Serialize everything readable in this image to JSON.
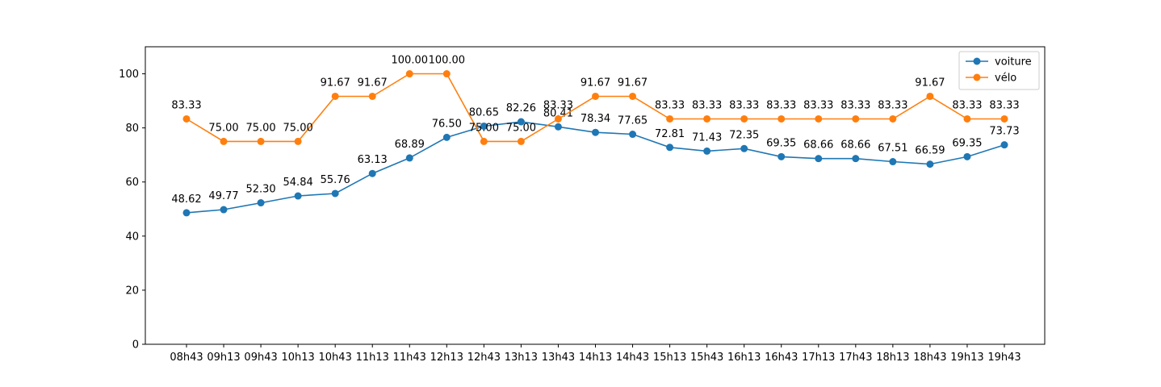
{
  "chart_data": {
    "type": "line",
    "categories": [
      "08h43",
      "09h13",
      "09h43",
      "10h13",
      "10h43",
      "11h13",
      "11h43",
      "12h13",
      "12h43",
      "13h13",
      "13h43",
      "14h13",
      "14h43",
      "15h13",
      "15h43",
      "16h13",
      "16h43",
      "17h13",
      "17h43",
      "18h13",
      "18h43",
      "19h13",
      "19h43"
    ],
    "series": [
      {
        "name": "voiture",
        "color": "#1f77b4",
        "values": [
          48.62,
          49.77,
          52.3,
          54.84,
          55.76,
          63.13,
          68.89,
          76.5,
          80.65,
          82.26,
          80.41,
          78.34,
          77.65,
          72.81,
          71.43,
          72.35,
          69.35,
          68.66,
          68.66,
          67.51,
          66.59,
          69.35,
          73.73
        ]
      },
      {
        "name": "vélo",
        "color": "#ff7f0e",
        "values": [
          83.33,
          75.0,
          75.0,
          75.0,
          91.67,
          91.67,
          100.0,
          100.0,
          75.0,
          75.0,
          83.33,
          91.67,
          91.67,
          83.33,
          83.33,
          83.33,
          83.33,
          83.33,
          83.33,
          83.33,
          91.67,
          83.33,
          83.33
        ]
      }
    ],
    "title": "",
    "xlabel": "",
    "ylabel": "",
    "ylim": [
      0,
      110
    ],
    "yticks": [
      0,
      20,
      40,
      60,
      80,
      100
    ],
    "grid": false,
    "legend": "top-right"
  }
}
